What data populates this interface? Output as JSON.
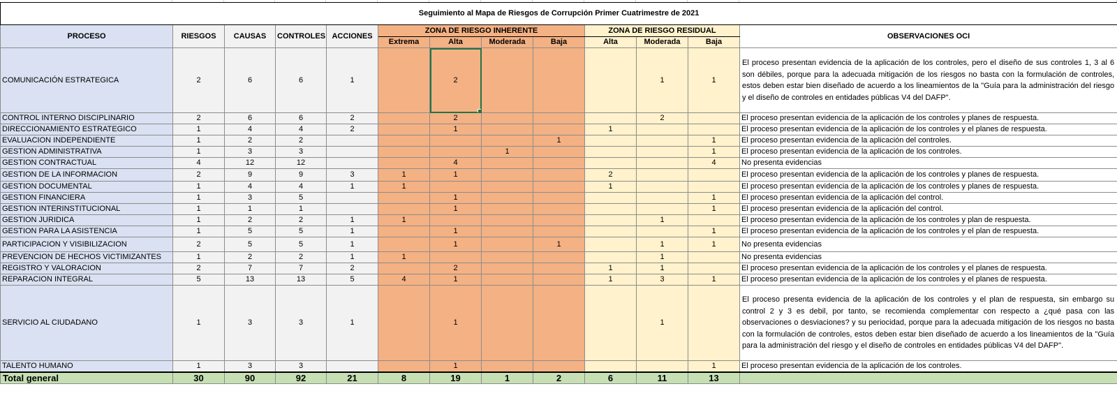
{
  "title": "Seguimiento al Mapa de Riesgos de Corrupción Primer Cuatrimestre de 2021",
  "headers": {
    "proceso": "PROCESO",
    "riesgos": "RIESGOS",
    "causas": "CAUSAS",
    "controles": "CONTROLES",
    "acciones": "ACCIONES",
    "zona_inherente": "ZONA DE RIESGO INHERENTE",
    "zona_residual": "ZONA DE RIESGO RESIDUAL",
    "observaciones": "OBSERVACIONES OCI",
    "inh_extrema": "Extrema",
    "inh_alta": "Alta",
    "inh_moderada": "Moderada",
    "inh_baja": "Baja",
    "res_alta": "Alta",
    "res_moderada": "Moderada",
    "res_baja": "Baja"
  },
  "rows": [
    {
      "proceso": "COMUNICACIÓN ESTRATEGICA",
      "riesgos": "2",
      "causas": "6",
      "controles": "6",
      "acciones": "1",
      "inh_extrema": "",
      "inh_alta": "2",
      "inh_moderada": "",
      "inh_baja": "",
      "res_alta": "",
      "res_moderada": "1",
      "res_baja": "1",
      "obs": "El proceso presentan evidencia de la aplicación de los controles, pero el diseño de sus controles 1, 3 al 6 son débiles, porque para la adecuada mitigación de los riesgos no basta con la formulación de controles, estos deben estar bien diseñado de acuerdo a los lineamientos de la \"Guía para la administración del riesgo y el diseño de controles en entidades públicas V4 del DAFP\"."
    },
    {
      "proceso": "CONTROL INTERNO DISCIPLINARIO",
      "riesgos": "2",
      "causas": "6",
      "controles": "6",
      "acciones": "2",
      "inh_extrema": "",
      "inh_alta": "2",
      "inh_moderada": "",
      "inh_baja": "",
      "res_alta": "",
      "res_moderada": "2",
      "res_baja": "",
      "obs": "El proceso presentan evidencia de la aplicación de los controles y planes de respuesta."
    },
    {
      "proceso": "DIRECCIONAMIENTO ESTRATEGICO",
      "riesgos": "1",
      "causas": "4",
      "controles": "4",
      "acciones": "2",
      "inh_extrema": "",
      "inh_alta": "1",
      "inh_moderada": "",
      "inh_baja": "",
      "res_alta": "1",
      "res_moderada": "",
      "res_baja": "",
      "obs": "El proceso presentan evidencia de la aplicación de los controles y el planes de respuesta."
    },
    {
      "proceso": "EVALUACION INDEPENDIENTE",
      "riesgos": "1",
      "causas": "2",
      "controles": "2",
      "acciones": "",
      "inh_extrema": "",
      "inh_alta": "",
      "inh_moderada": "",
      "inh_baja": "1",
      "res_alta": "",
      "res_moderada": "",
      "res_baja": "1",
      "obs": "El proceso presentan evidencia de la aplicación del controles."
    },
    {
      "proceso": "GESTION ADMINISTRATIVA",
      "riesgos": "1",
      "causas": "3",
      "controles": "3",
      "acciones": "",
      "inh_extrema": "",
      "inh_alta": "",
      "inh_moderada": "1",
      "inh_baja": "",
      "res_alta": "",
      "res_moderada": "",
      "res_baja": "1",
      "obs": "El proceso presentan evidencia de la aplicación de los controles."
    },
    {
      "proceso": "GESTION CONTRACTUAL",
      "riesgos": "4",
      "causas": "12",
      "controles": "12",
      "acciones": "",
      "inh_extrema": "",
      "inh_alta": "4",
      "inh_moderada": "",
      "inh_baja": "",
      "res_alta": "",
      "res_moderada": "",
      "res_baja": "4",
      "obs": "No presenta evidencias"
    },
    {
      "proceso": "GESTION DE LA INFORMACION",
      "riesgos": "2",
      "causas": "9",
      "controles": "9",
      "acciones": "3",
      "inh_extrema": "1",
      "inh_alta": "1",
      "inh_moderada": "",
      "inh_baja": "",
      "res_alta": "2",
      "res_moderada": "",
      "res_baja": "",
      "obs": "El proceso presentan evidencia de la aplicación de los controles y planes de respuesta."
    },
    {
      "proceso": "GESTION DOCUMENTAL",
      "riesgos": "1",
      "causas": "4",
      "controles": "4",
      "acciones": "1",
      "inh_extrema": "1",
      "inh_alta": "",
      "inh_moderada": "",
      "inh_baja": "",
      "res_alta": "1",
      "res_moderada": "",
      "res_baja": "",
      "obs": "El proceso presentan evidencia de la aplicación de los controles y planes de respuesta."
    },
    {
      "proceso": "GESTION FINANCIERA",
      "riesgos": "1",
      "causas": "3",
      "controles": "5",
      "acciones": "",
      "inh_extrema": "",
      "inh_alta": "1",
      "inh_moderada": "",
      "inh_baja": "",
      "res_alta": "",
      "res_moderada": "",
      "res_baja": "1",
      "obs": "El proceso presentan evidencia de la aplicación del control."
    },
    {
      "proceso": "GESTION INTERINSTITUCIONAL",
      "riesgos": "1",
      "causas": "1",
      "controles": "1",
      "acciones": "",
      "inh_extrema": "",
      "inh_alta": "1",
      "inh_moderada": "",
      "inh_baja": "",
      "res_alta": "",
      "res_moderada": "",
      "res_baja": "1",
      "obs": "El proceso presentan evidencia de la aplicación del control."
    },
    {
      "proceso": "GESTION JURIDICA",
      "riesgos": "1",
      "causas": "2",
      "controles": "2",
      "acciones": "1",
      "inh_extrema": "1",
      "inh_alta": "",
      "inh_moderada": "",
      "inh_baja": "",
      "res_alta": "",
      "res_moderada": "1",
      "res_baja": "",
      "obs": "El proceso presentan evidencia de la aplicación de los controles y plan de respuesta."
    },
    {
      "proceso": "GESTION PARA LA ASISTENCIA",
      "riesgos": "1",
      "causas": "5",
      "controles": "5",
      "acciones": "1",
      "inh_extrema": "",
      "inh_alta": "1",
      "inh_moderada": "",
      "inh_baja": "",
      "res_alta": "",
      "res_moderada": "",
      "res_baja": "1",
      "obs": "El proceso presentan evidencia de la aplicación de los controles y el plan de respuesta."
    },
    {
      "proceso": "PARTICIPACION Y VISIBILIZACION",
      "riesgos": "2",
      "causas": "5",
      "controles": "5",
      "acciones": "1",
      "inh_extrema": "",
      "inh_alta": "1",
      "inh_moderada": "",
      "inh_baja": "1",
      "res_alta": "",
      "res_moderada": "1",
      "res_baja": "1",
      "obs": "No presenta evidencias"
    },
    {
      "proceso": "PREVENCION DE HECHOS VICTIMIZANTES",
      "riesgos": "1",
      "causas": "2",
      "controles": "2",
      "acciones": "1",
      "inh_extrema": "1",
      "inh_alta": "",
      "inh_moderada": "",
      "inh_baja": "",
      "res_alta": "",
      "res_moderada": "1",
      "res_baja": "",
      "obs": "No presenta evidencias"
    },
    {
      "proceso": "REGISTRO Y VALORACION",
      "riesgos": "2",
      "causas": "7",
      "controles": "7",
      "acciones": "2",
      "inh_extrema": "",
      "inh_alta": "2",
      "inh_moderada": "",
      "inh_baja": "",
      "res_alta": "1",
      "res_moderada": "1",
      "res_baja": "",
      "obs": "El proceso presentan evidencia de la aplicación de los controles y el planes de respuesta."
    },
    {
      "proceso": "REPARACION INTEGRAL",
      "riesgos": "5",
      "causas": "13",
      "controles": "13",
      "acciones": "5",
      "inh_extrema": "4",
      "inh_alta": "1",
      "inh_moderada": "",
      "inh_baja": "",
      "res_alta": "1",
      "res_moderada": "3",
      "res_baja": "1",
      "obs": "El proceso presentan evidencia de la aplicación de los controles y el planes de respuesta."
    },
    {
      "proceso": "SERVICIO AL CIUDADANO",
      "riesgos": "1",
      "causas": "3",
      "controles": "3",
      "acciones": "1",
      "inh_extrema": "",
      "inh_alta": "1",
      "inh_moderada": "",
      "inh_baja": "",
      "res_alta": "",
      "res_moderada": "1",
      "res_baja": "",
      "obs": "El proceso presenta evidencia de la aplicación de los controles y el plan de respuesta, sin embargo su control 2 y 3 es debil, por tanto, se recomienda complementar con respecto a ¿qué pasa con las observaciones o desviaciones? y su periocidad, porque para la adecuada mitigación de los riesgos no basta con la formulación de controles, estos deben estar bien diseñado de acuerdo a los lineamientos de la \"Guía para la administración del riesgo y el diseño de controles en entidades públicas V4 del DAFP\"."
    },
    {
      "proceso": "TALENTO HUMANO",
      "riesgos": "1",
      "causas": "3",
      "controles": "3",
      "acciones": "",
      "inh_extrema": "",
      "inh_alta": "1",
      "inh_moderada": "",
      "inh_baja": "",
      "res_alta": "",
      "res_moderada": "",
      "res_baja": "1",
      "obs": "El proceso presentan evidencia de la aplicación de los controles."
    }
  ],
  "total": {
    "label": "Total general",
    "riesgos": "30",
    "causas": "90",
    "controles": "92",
    "acciones": "21",
    "inh_extrema": "8",
    "inh_alta": "19",
    "inh_moderada": "1",
    "inh_baja": "2",
    "res_alta": "6",
    "res_moderada": "11",
    "res_baja": "13"
  }
}
